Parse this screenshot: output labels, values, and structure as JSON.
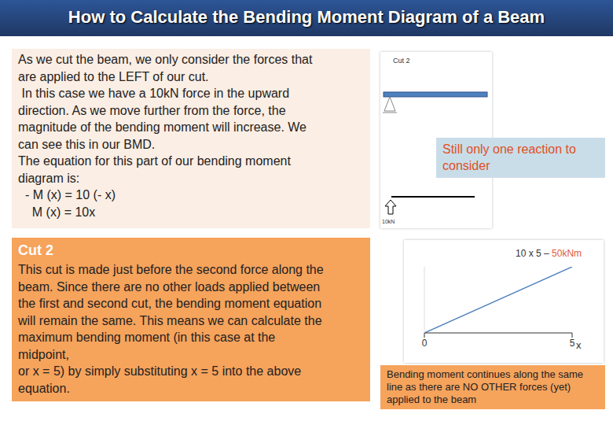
{
  "header": {
    "title": "How to Calculate the Bending Moment Diagram of a Beam"
  },
  "intro": {
    "lines": [
      "As we cut the beam, we only consider the forces that",
      "are applied to the LEFT of our cut.",
      " In this case we have a 10kN force in the upward",
      "direction. As we move further from the force, the",
      "magnitude of the bending moment will increase. We",
      "can see this in our BMD.",
      "The equation for this part of our bending moment",
      "diagram is:",
      "  - M (x) = 10 (- x)",
      "    M (x) = 10x"
    ]
  },
  "beam_figure": {
    "label": "Cut 2",
    "force_label": "10kN"
  },
  "callout": "Still only one reaction to consider",
  "section": {
    "heading": "Cut 2",
    "lines": [
      "This cut is made just before the second force along the",
      "beam. Since there are no other loads applied between",
      "the first and second cut, the bending moment equation",
      "will remain the same. This means we can calculate the",
      "maximum bending moment (in this case at the",
      "midpoint,",
      "or x = 5) by simply substituting x = 5 into the above",
      "equation."
    ]
  },
  "chart_data": {
    "type": "line",
    "x": [
      0,
      5
    ],
    "values": [
      0,
      50
    ],
    "xlim": [
      0,
      5
    ],
    "xticks": [
      0,
      5
    ],
    "ylim": [
      0,
      50
    ],
    "yticks": [],
    "x_label": "x",
    "tick_labels": "x",
    "color": "#4f81bd",
    "annotation": {
      "prefix": "10 x 5 –",
      "value": "50kNm"
    }
  },
  "caption": "Bending moment continues along the same line as there are NO OTHER forces (yet) applied to the beam"
}
